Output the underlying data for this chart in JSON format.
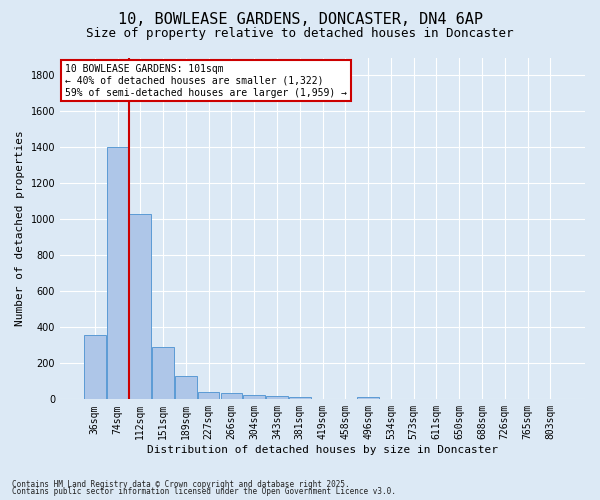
{
  "title1": "10, BOWLEASE GARDENS, DONCASTER, DN4 6AP",
  "title2": "Size of property relative to detached houses in Doncaster",
  "xlabel": "Distribution of detached houses by size in Doncaster",
  "ylabel": "Number of detached properties",
  "bins": [
    "36sqm",
    "74sqm",
    "112sqm",
    "151sqm",
    "189sqm",
    "227sqm",
    "266sqm",
    "304sqm",
    "343sqm",
    "381sqm",
    "419sqm",
    "458sqm",
    "496sqm",
    "534sqm",
    "573sqm",
    "611sqm",
    "650sqm",
    "688sqm",
    "726sqm",
    "765sqm",
    "803sqm"
  ],
  "values": [
    360,
    1400,
    1030,
    290,
    130,
    40,
    33,
    25,
    20,
    15,
    0,
    0,
    15,
    0,
    0,
    0,
    0,
    0,
    0,
    0,
    0
  ],
  "bar_color": "#aec6e8",
  "bar_edge_color": "#5b9bd5",
  "vline_color": "#cc0000",
  "vline_x_index": 1,
  "annotation_text": "10 BOWLEASE GARDENS: 101sqm\n← 40% of detached houses are smaller (1,322)\n59% of semi-detached houses are larger (1,959) →",
  "annotation_box_color": "#ffffff",
  "annotation_box_edge": "#cc0000",
  "ylim": [
    0,
    1900
  ],
  "yticks": [
    0,
    200,
    400,
    600,
    800,
    1000,
    1200,
    1400,
    1600,
    1800
  ],
  "bg_color": "#dce9f5",
  "grid_color": "#ffffff",
  "footer1": "Contains HM Land Registry data © Crown copyright and database right 2025.",
  "footer2": "Contains public sector information licensed under the Open Government Licence v3.0.",
  "title1_fontsize": 11,
  "title2_fontsize": 9,
  "axis_label_fontsize": 8,
  "tick_fontsize": 7,
  "annotation_fontsize": 7,
  "footer_fontsize": 5.5
}
